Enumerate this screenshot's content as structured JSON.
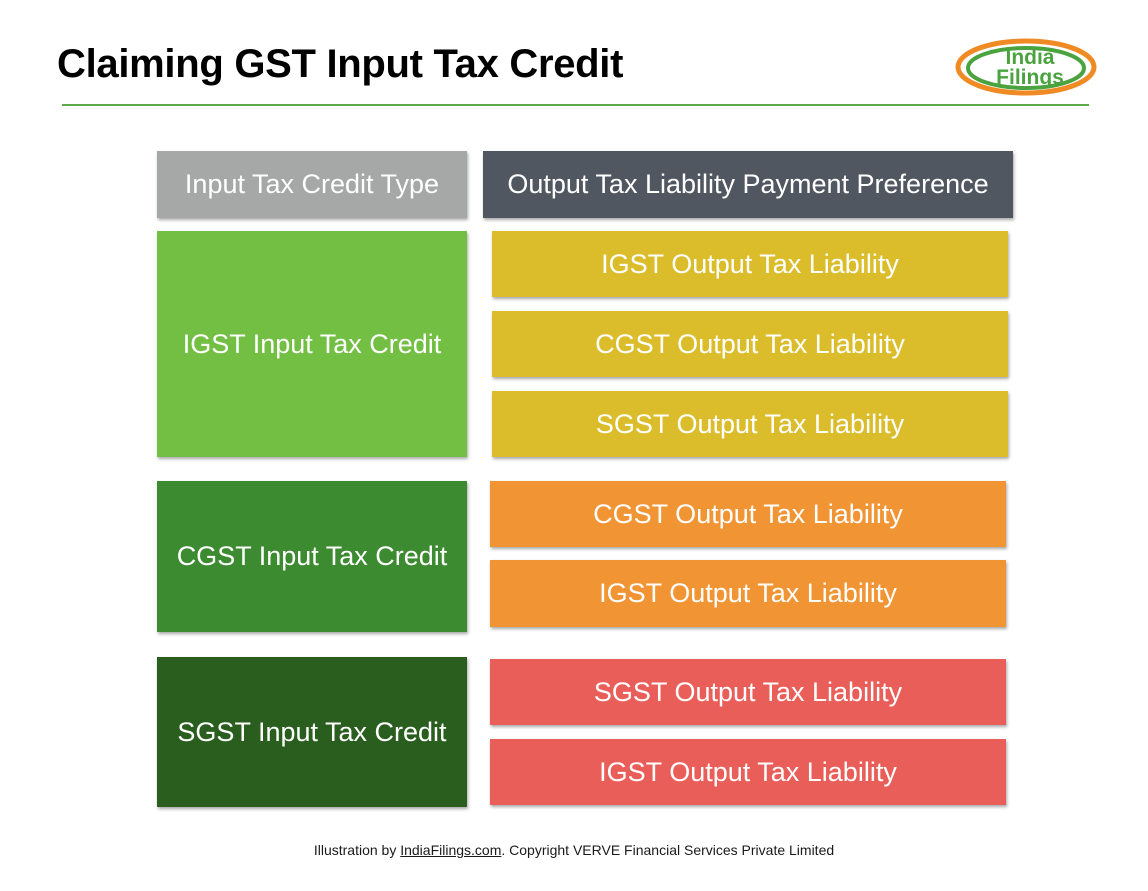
{
  "title": "Claiming GST Input Tax Credit",
  "logo": {
    "line1": "India",
    "line2": "Filings"
  },
  "headers": {
    "left": "Input Tax Credit Type",
    "right": "Output Tax Liability Payment Preference"
  },
  "groups": [
    {
      "credit": "IGST Input Tax Credit",
      "liabilities": [
        "IGST Output Tax Liability",
        "CGST Output Tax Liability",
        "SGST Output Tax Liability"
      ]
    },
    {
      "credit": "CGST Input Tax Credit",
      "liabilities": [
        "CGST Output Tax Liability",
        "IGST Output Tax Liability"
      ]
    },
    {
      "credit": "SGST Input Tax Credit",
      "liabilities": [
        "SGST Output Tax Liability",
        "IGST Output Tax Liability"
      ]
    }
  ],
  "colors": {
    "header_left": "#a5a8a6",
    "header_right": "#515760",
    "igst_credit": "#72bf44",
    "cgst_credit": "#3d8b30",
    "sgst_credit": "#2a5e1e",
    "igst_liability_group": "#dbbd2c",
    "cgst_liability_group": "#f19434",
    "sgst_liability_group": "#e95e59",
    "rule": "#5da84b"
  },
  "footer": {
    "prefix": "Illustration by ",
    "link": "IndiaFilings.com",
    "suffix": ". Copyright VERVE Financial Services Private Limited"
  }
}
